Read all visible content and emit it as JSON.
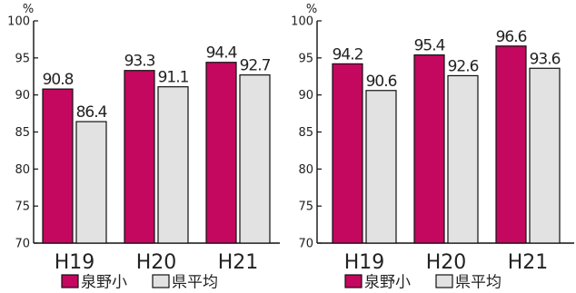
{
  "chart_data": [
    {
      "type": "bar",
      "unit": "%",
      "categories": [
        "H19",
        "H20",
        "H21"
      ],
      "ylim": [
        70,
        100
      ],
      "yticks": [
        70,
        75,
        80,
        85,
        90,
        95,
        100
      ],
      "grid": false,
      "legend_position": "bottom",
      "series": [
        {
          "name": "泉野小",
          "values": [
            90.8,
            93.3,
            94.4
          ],
          "labels": [
            "90.8",
            "93.3",
            "94.4"
          ]
        },
        {
          "name": "県平均",
          "values": [
            86.4,
            91.1,
            92.7
          ],
          "labels": [
            "86.4",
            "91.1",
            "92.7"
          ]
        }
      ]
    },
    {
      "type": "bar",
      "unit": "%",
      "categories": [
        "H19",
        "H20",
        "H21"
      ],
      "ylim": [
        70,
        100
      ],
      "yticks": [
        70,
        75,
        80,
        85,
        90,
        95,
        100
      ],
      "grid": false,
      "legend_position": "bottom",
      "series": [
        {
          "name": "泉野小",
          "values": [
            94.2,
            95.4,
            96.6
          ],
          "labels": [
            "94.2",
            "95.4",
            "96.6"
          ]
        },
        {
          "name": "県平均",
          "values": [
            90.6,
            92.6,
            93.6
          ],
          "labels": [
            "90.6",
            "92.6",
            "93.6"
          ]
        }
      ]
    }
  ],
  "colors": {
    "series": [
      "#c4075f",
      "#e2e2e2"
    ],
    "stroke": "#111111",
    "axis": "#111111"
  }
}
